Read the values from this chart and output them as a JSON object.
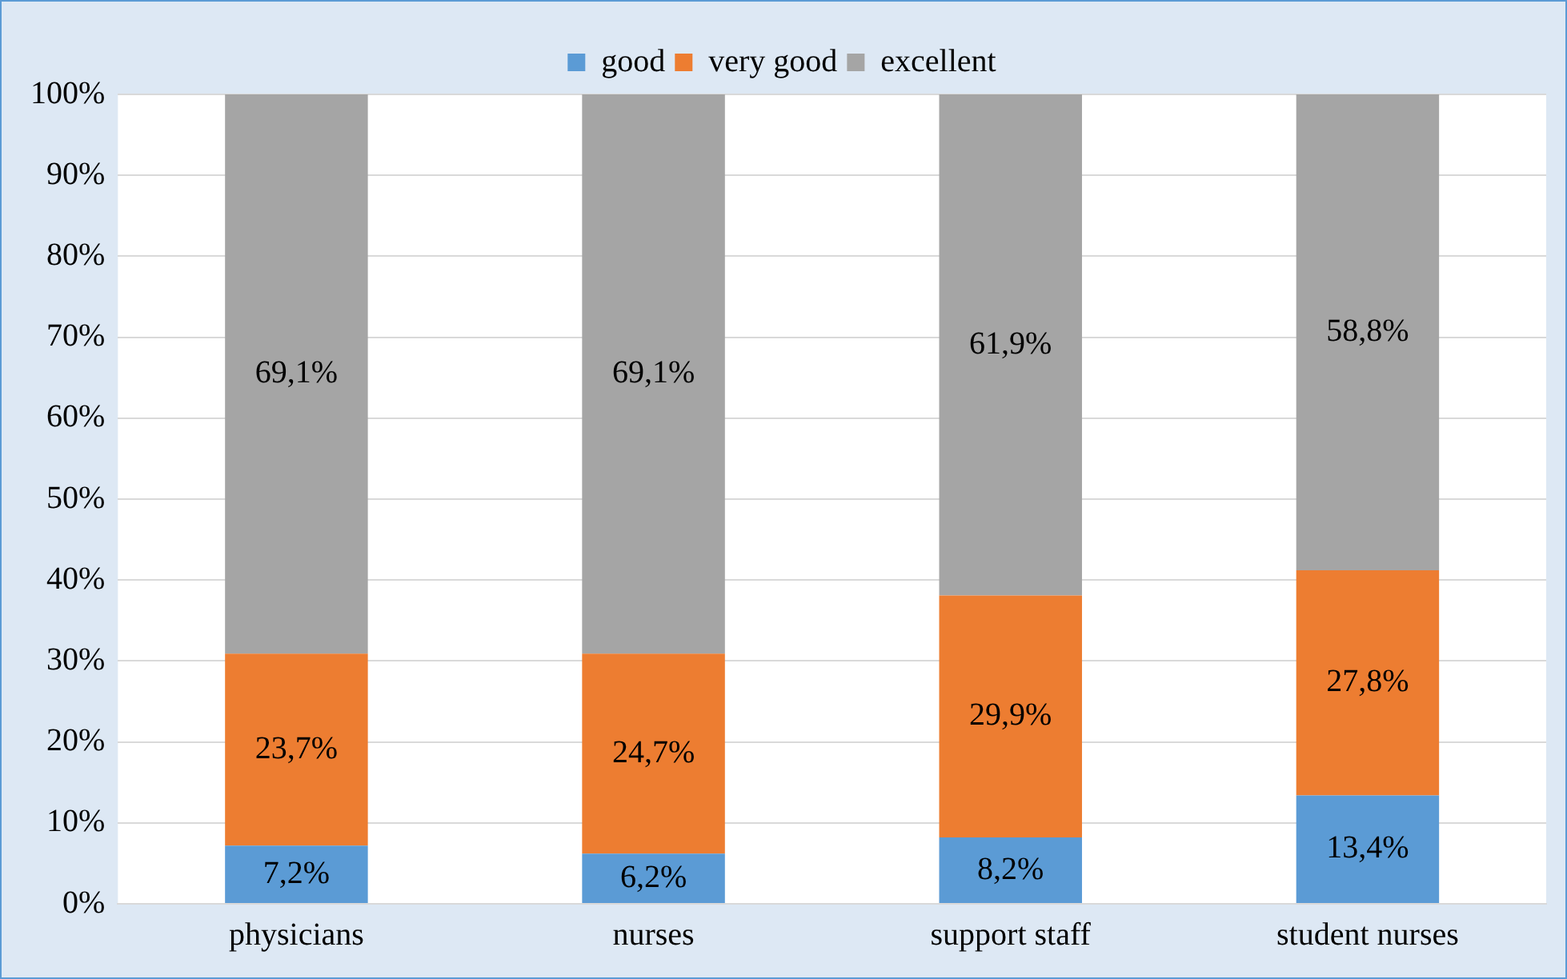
{
  "chart_data": {
    "type": "bar",
    "stacked": true,
    "categories": [
      "physicians",
      "nurses",
      "support staff",
      "student nurses"
    ],
    "series": [
      {
        "name": "good",
        "color": "#5b9bd5",
        "values": [
          7.2,
          6.2,
          8.2,
          13.4
        ],
        "value_labels": [
          "7,2%",
          "6,2%",
          "8,2%",
          "13,4%"
        ]
      },
      {
        "name": "very good",
        "color": "#ed7d31",
        "values": [
          23.7,
          24.7,
          29.9,
          27.8
        ],
        "value_labels": [
          "23,7%",
          "24,7%",
          "29,9%",
          "27,8%"
        ]
      },
      {
        "name": "excellent",
        "color": "#a5a5a5",
        "values": [
          69.1,
          69.1,
          61.9,
          58.8
        ],
        "value_labels": [
          "69,1%",
          "69,1%",
          "61,9%",
          "58,8%"
        ]
      }
    ],
    "ylim": [
      0,
      100
    ],
    "yticks": [
      {
        "value": 0,
        "label": "0%"
      },
      {
        "value": 10,
        "label": "10%"
      },
      {
        "value": 20,
        "label": "20%"
      },
      {
        "value": 30,
        "label": "30%"
      },
      {
        "value": 40,
        "label": "40%"
      },
      {
        "value": 50,
        "label": "50%"
      },
      {
        "value": 60,
        "label": "60%"
      },
      {
        "value": 70,
        "label": "70%"
      },
      {
        "value": 80,
        "label": "80%"
      },
      {
        "value": 90,
        "label": "90%"
      },
      {
        "value": 100,
        "label": "100%"
      }
    ],
    "grid": "y",
    "legend": "top"
  }
}
